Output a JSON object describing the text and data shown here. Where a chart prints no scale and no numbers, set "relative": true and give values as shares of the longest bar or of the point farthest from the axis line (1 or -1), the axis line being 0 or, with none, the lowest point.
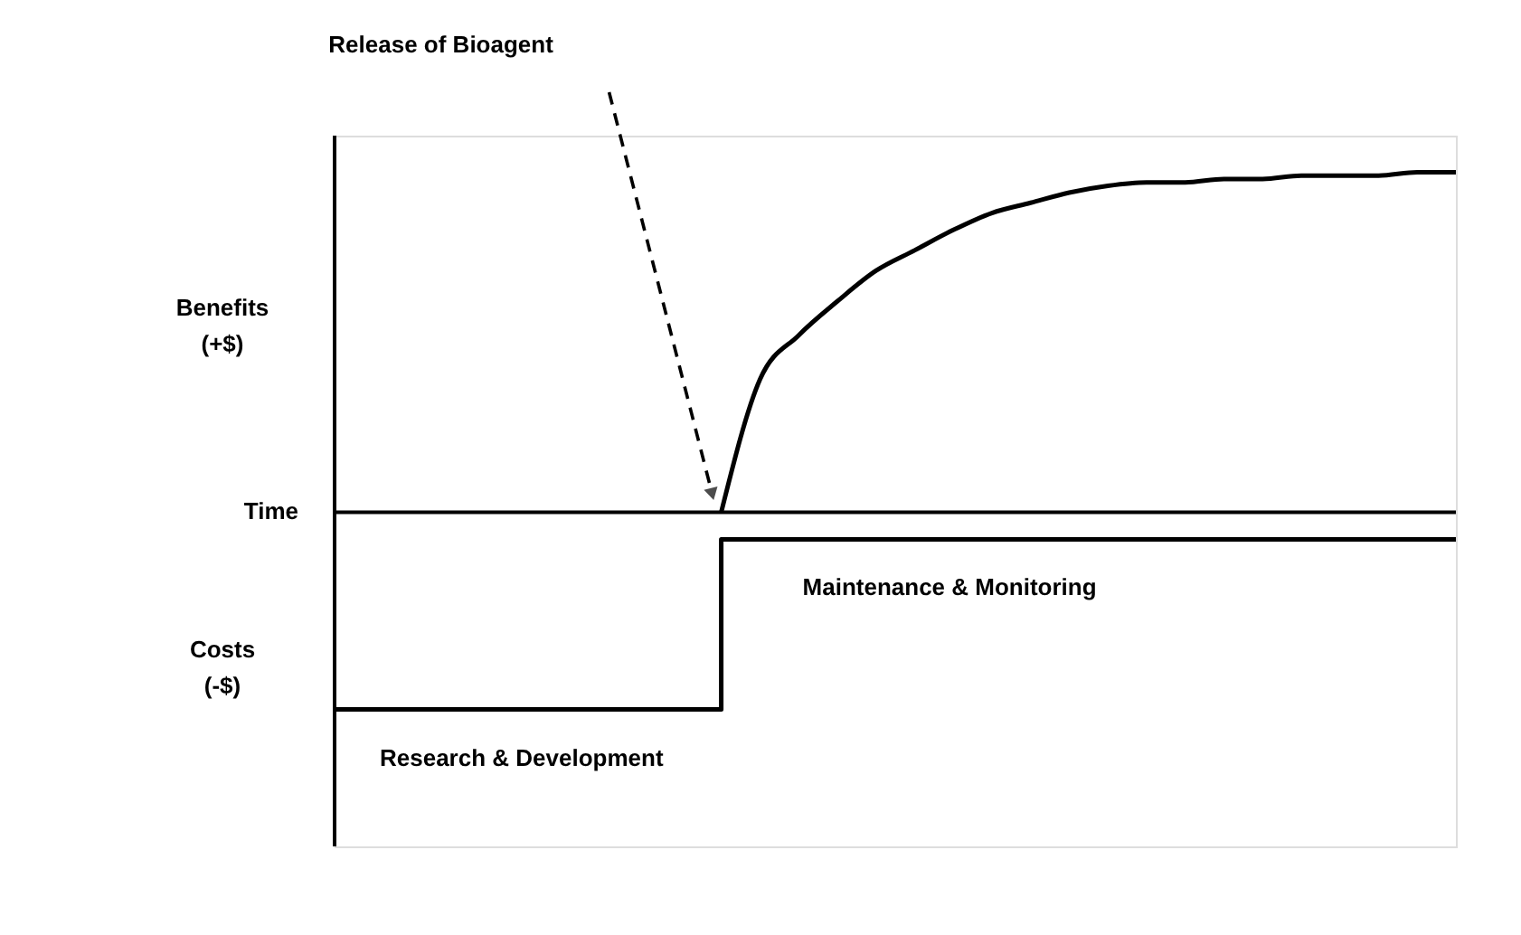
{
  "chart_data": {
    "type": "line",
    "relative": true,
    "xlabel": "Time",
    "categories": [
      null,
      null,
      null,
      null,
      null,
      null,
      null,
      null,
      null,
      null,
      null,
      null,
      null,
      null,
      null,
      null,
      null,
      null,
      null,
      null,
      null,
      null,
      null,
      null,
      null,
      null,
      null,
      null,
      null,
      null
    ],
    "series": [
      {
        "color": "#000000",
        "values": [
          null,
          null,
          null,
          null,
          null,
          null,
          null,
          null,
          null,
          null,
          0,
          0.39,
          0.52,
          0.62,
          0.71,
          0.77,
          0.83,
          0.88,
          0.91,
          0.94,
          0.96,
          0.97,
          0.97,
          0.98,
          0.98,
          0.99,
          0.99,
          0.99,
          1.0,
          1.0
        ]
      },
      {
        "type": "step",
        "color": "#000000",
        "values": [
          -0.58,
          -0.58,
          -0.58,
          -0.58,
          -0.58,
          -0.58,
          -0.58,
          -0.58,
          -0.58,
          -0.58,
          -0.08,
          -0.08,
          -0.08,
          -0.08,
          -0.08,
          -0.08,
          -0.08,
          -0.08,
          -0.08,
          -0.08,
          -0.08,
          -0.08,
          -0.08,
          -0.08,
          -0.08,
          -0.08,
          -0.08,
          -0.08,
          -0.08,
          -0.08
        ]
      }
    ],
    "annotations": [
      "Benefits (+$)",
      "Costs (-$)",
      "Release of Bioagent",
      {
        "text": "Maintenance & Monitoring",
        "y": -0.08
      },
      {
        "text": "Research & Development",
        "y": -0.58
      }
    ],
    "grid": false,
    "legend": false,
    "marker": "none",
    "line_style": "solid"
  }
}
